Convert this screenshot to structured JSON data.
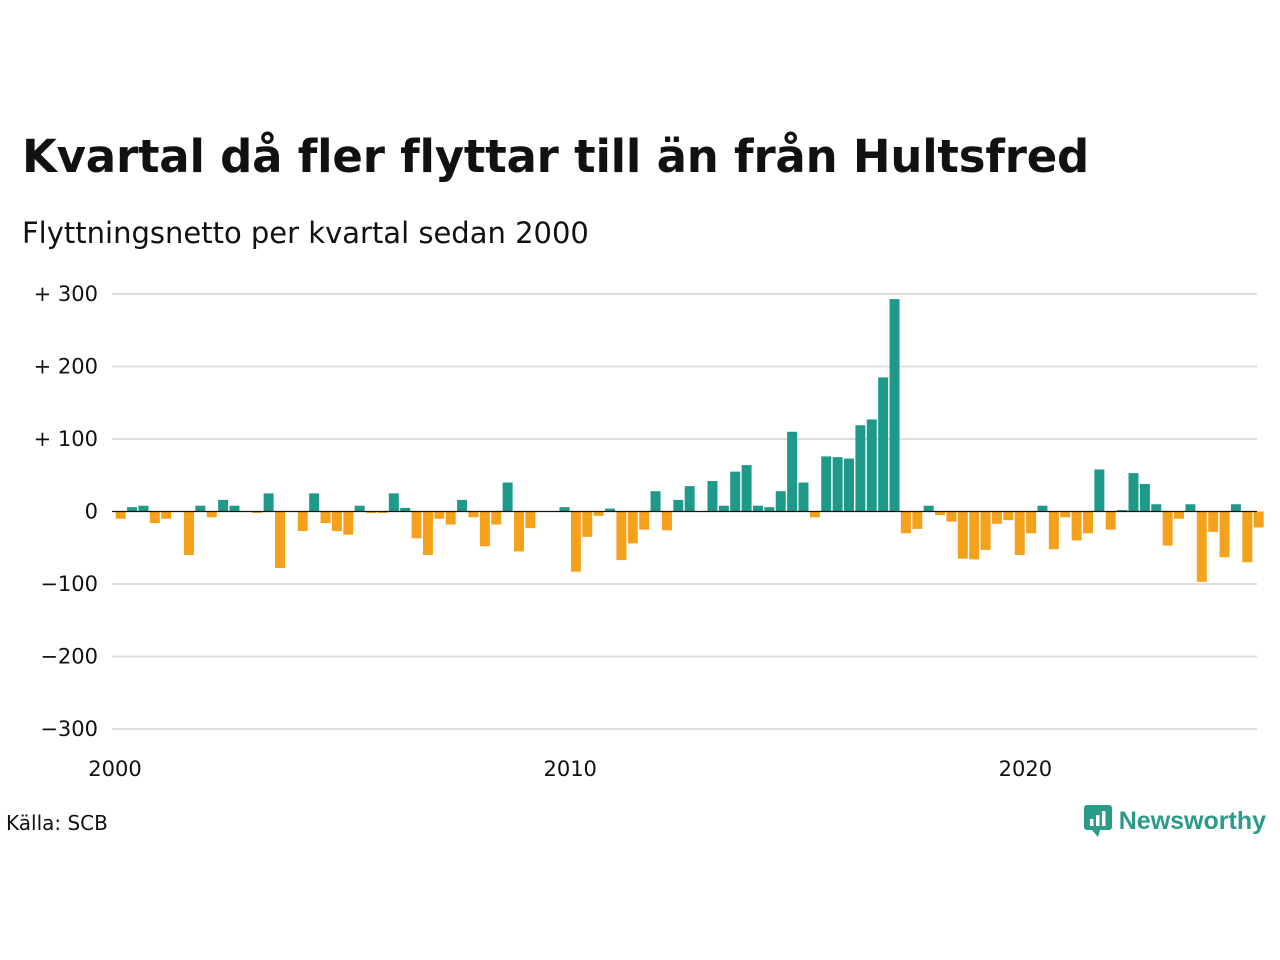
{
  "header": {
    "title": "Kvartal då fler flyttar till än från Hultsfred",
    "subtitle": "Flyttningsnetto per kvartal sedan 2000"
  },
  "footer": {
    "source": "Källa: SCB",
    "brand": "Newsworthy"
  },
  "colors": {
    "positive": "#1f9a8a",
    "negative": "#f5a11c",
    "grid": "#dddddd",
    "zero_line": "#111111",
    "brand": "#2a9a89"
  },
  "chart_data": {
    "type": "bar",
    "title": "Kvartal då fler flyttar till än från Hultsfred",
    "subtitle": "Flyttningsnetto per kvartal sedan 2000",
    "xlabel": "",
    "ylabel": "",
    "ylim": [
      -300,
      300
    ],
    "yticks": [
      300,
      200,
      100,
      0,
      -100,
      -200,
      -300
    ],
    "ytick_labels": [
      "+ 300",
      "+ 200",
      "+ 100",
      "0",
      "−100",
      "−200",
      "−300"
    ],
    "xticks": [
      2000,
      2010,
      2020
    ],
    "xtick_labels": [
      "2000",
      "2010",
      "2020"
    ],
    "grid": true,
    "legend": "none",
    "start_year": 2000,
    "values": [
      -10,
      6,
      8,
      -16,
      -10,
      0,
      -60,
      8,
      -8,
      16,
      8,
      0,
      -2,
      25,
      -78,
      0,
      -27,
      25,
      -16,
      -27,
      -32,
      8,
      -2,
      -2,
      25,
      5,
      -37,
      -60,
      -10,
      -18,
      16,
      -8,
      -48,
      -18,
      40,
      -55,
      -23,
      0,
      0,
      6,
      -83,
      -35,
      -6,
      4,
      -67,
      -44,
      -25,
      28,
      -26,
      16,
      35,
      0,
      42,
      8,
      55,
      64,
      8,
      6,
      28,
      110,
      40,
      -8,
      76,
      75,
      73,
      119,
      127,
      185,
      293,
      -30,
      -24,
      8,
      -5,
      -14,
      -65,
      -66,
      -53,
      -17,
      -12,
      -60,
      -30,
      8,
      -52,
      -8,
      -40,
      -30,
      58,
      -25,
      2,
      53,
      38,
      10,
      -47,
      -10,
      10,
      -97,
      -28,
      -63,
      10,
      -70,
      -22
    ]
  }
}
